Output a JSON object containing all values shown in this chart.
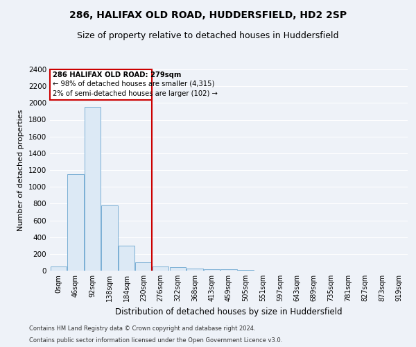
{
  "title_line1": "286, HALIFAX OLD ROAD, HUDDERSFIELD, HD2 2SP",
  "title_line2": "Size of property relative to detached houses in Huddersfield",
  "xlabel": "Distribution of detached houses by size in Huddersfield",
  "ylabel": "Number of detached properties",
  "footnote1": "Contains HM Land Registry data © Crown copyright and database right 2024.",
  "footnote2": "Contains public sector information licensed under the Open Government Licence v3.0.",
  "bar_labels": [
    "0sqm",
    "46sqm",
    "92sqm",
    "138sqm",
    "184sqm",
    "230sqm",
    "276sqm",
    "322sqm",
    "368sqm",
    "413sqm",
    "459sqm",
    "505sqm",
    "551sqm",
    "597sqm",
    "643sqm",
    "689sqm",
    "735sqm",
    "781sqm",
    "827sqm",
    "873sqm",
    "919sqm"
  ],
  "bar_values": [
    50,
    1150,
    1950,
    775,
    300,
    100,
    50,
    38,
    28,
    20,
    15,
    10,
    0,
    0,
    0,
    0,
    0,
    0,
    0,
    0,
    0
  ],
  "bar_color": "#dce9f5",
  "bar_edge_color": "#7aafd4",
  "property_line_x": 6,
  "property_label": "286 HALIFAX OLD ROAD: 279sqm",
  "annotation_line1": "← 98% of detached houses are smaller (4,315)",
  "annotation_line2": "2% of semi-detached houses are larger (102) →",
  "vline_color": "#cc0000",
  "annotation_box_color": "#cc0000",
  "ylim": [
    0,
    2400
  ],
  "yticks": [
    0,
    200,
    400,
    600,
    800,
    1000,
    1200,
    1400,
    1600,
    1800,
    2000,
    2200,
    2400
  ],
  "background_color": "#eef2f8",
  "grid_color": "#ffffff",
  "title_fontsize": 10,
  "subtitle_fontsize": 9
}
